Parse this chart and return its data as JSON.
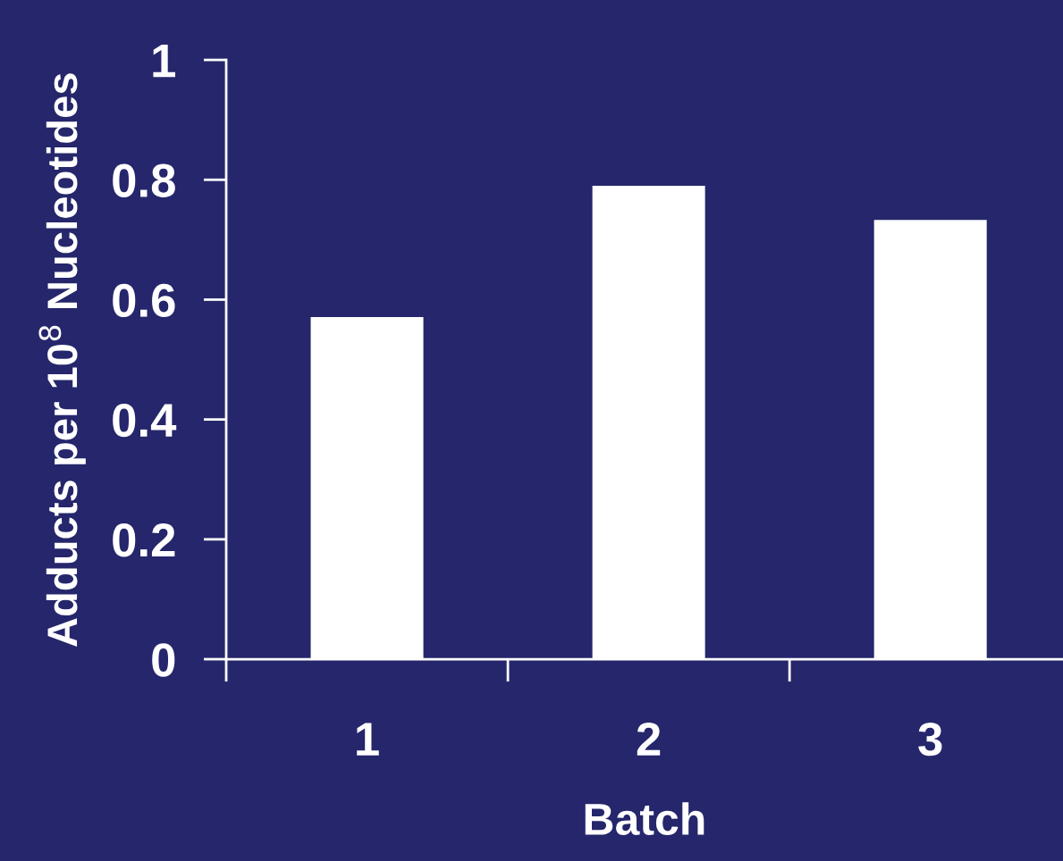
{
  "chart_data": {
    "type": "bar",
    "xlabel": "Batch",
    "ylabel": "Adducts per 10$^{8}$ Nucleotides",
    "categories": [
      "1",
      "2",
      "3"
    ],
    "values": [
      0.571,
      0.79,
      0.733
    ],
    "color": "#ffffff",
    "ylim": [
      0,
      1
    ],
    "yticks": [
      0,
      0.2,
      0.4,
      0.6,
      0.8,
      1
    ],
    "grid": false,
    "legend": false
  }
}
